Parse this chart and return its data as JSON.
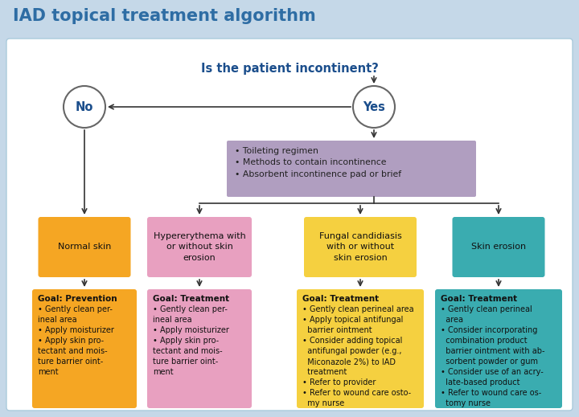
{
  "title": "IAD topical treatment algorithm",
  "title_color": "#2E6DA4",
  "bg_outer": "#C5D8E8",
  "bg_inner": "#FFFFFF",
  "question": "Is the patient incontinent?",
  "question_color": "#1B4E8C",
  "no_label": "No",
  "yes_label": "Yes",
  "circle_fc": "#FFFFFF",
  "circle_ec": "#666666",
  "arrow_color": "#333333",
  "purple_box": {
    "text": "• Toileting regimen\n• Methods to contain incontinence\n• Absorbent incontinence pad or brief",
    "color": "#B09EC0",
    "text_color": "#222222"
  },
  "col1": {
    "top_text": "Normal skin",
    "top_color": "#F5A623",
    "bot_title": "Goal: Prevention",
    "bot_text": "• Gently clean per-\nineal area\n• Apply moisturizer\n• Apply skin pro-\ntectant and mois-\nture barrier oint-\nment",
    "bot_color": "#F5A623"
  },
  "col2": {
    "top_text": "Hypererythema with\nor without skin\nerosion",
    "top_color": "#E8A0C0",
    "bot_title": "Goal: Treatment",
    "bot_text": "• Gently clean per-\nineal area\n• Apply moisturizer\n• Apply skin pro-\ntectant and mois-\nture barrier oint-\nment",
    "bot_color": "#E8A0C0"
  },
  "col3": {
    "top_text": "Fungal candidiasis\nwith or without\nskin erosion",
    "top_color": "#F5D040",
    "bot_title": "Goal: Treatment",
    "bot_text": "• Gently clean perineal area\n• Apply topical antifungal\n  barrier ointment\n• Consider adding topical\n  antifungal powder (e.g.,\n  Miconazole 2%) to IAD\n  treatment\n• Refer to provider\n• Refer to wound care osto-\n  my nurse",
    "bot_color": "#F5D040"
  },
  "col4": {
    "top_text": "Skin erosion",
    "top_color": "#3AACB0",
    "bot_title": "Goal: Treatment",
    "bot_text": "• Gently clean perineal\n  area\n• Consider incorporating\n  combination product\n  barrier ointment with ab-\n  sorbent powder or gum\n• Consider use of an acry-\n  late-based product\n• Refer to wound care os-\n  tomy nurse",
    "bot_color": "#3AACB0"
  }
}
